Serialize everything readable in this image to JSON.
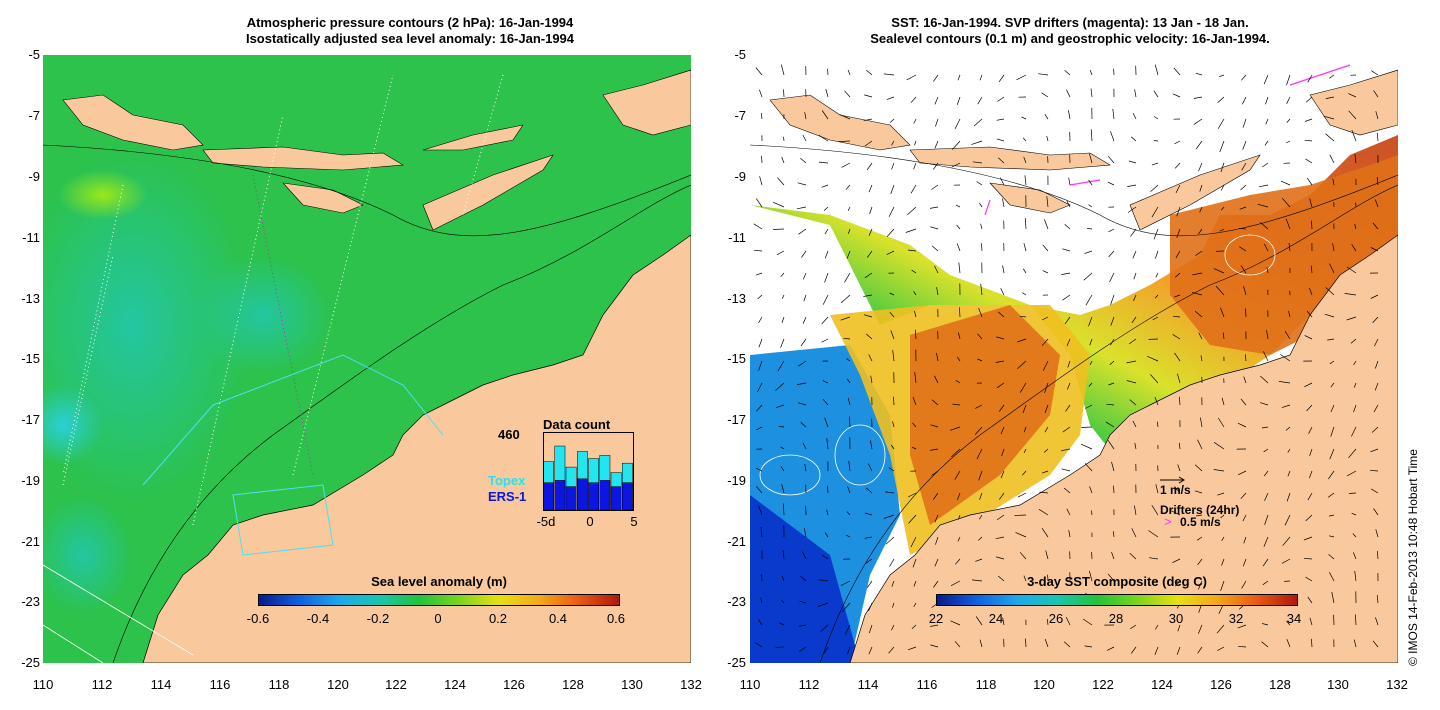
{
  "left_panel": {
    "title_line1": "Atmospheric pressure contours (2 hPa): 16-Jan-1994",
    "title_line2": "Isostatically adjusted sea level anomaly: 16-Jan-1994",
    "y_ticks": [
      "-5",
      "-7",
      "-9",
      "-11",
      "-13",
      "-15",
      "-17",
      "-19",
      "-21",
      "-23",
      "-25"
    ],
    "x_ticks": [
      "110",
      "112",
      "114",
      "116",
      "118",
      "120",
      "122",
      "124",
      "126",
      "128",
      "130",
      "132"
    ],
    "inset": {
      "title": "Data count",
      "max_label": "460",
      "topex_label": "Topex",
      "ers_label": "ERS-1",
      "x_ticks": [
        "-5d",
        "0",
        "5"
      ],
      "topex_color": "#22e5f0",
      "ers_color": "#0b16e0",
      "counts_total": [
        0.62,
        0.82,
        0.55,
        0.75,
        0.66,
        0.7,
        0.48,
        0.6
      ],
      "counts_ers": [
        0.35,
        0.38,
        0.3,
        0.4,
        0.35,
        0.38,
        0.3,
        0.35
      ]
    },
    "colorbar": {
      "label": "Sea level anomaly (m)",
      "ticks": [
        "-0.6",
        "-0.4",
        "-0.2",
        "0",
        "0.2",
        "0.4",
        "0.6"
      ]
    }
  },
  "right_panel": {
    "title_line1": "SST: 16-Jan-1994. SVP drifters (magenta): 13 Jan - 18 Jan.",
    "title_line2": "Sealevel contours (0.1 m) and geostrophic velocity: 16-Jan-1994.",
    "y_ticks": [
      "-5",
      "-7",
      "-9",
      "-11",
      "-13",
      "-15",
      "-17",
      "-19",
      "-21",
      "-23",
      "-25"
    ],
    "x_ticks": [
      "110",
      "112",
      "114",
      "116",
      "118",
      "120",
      "122",
      "124",
      "126",
      "128",
      "130",
      "132"
    ],
    "legend": {
      "velocity": "1 m/s",
      "drifters": "Drifters (24hr)",
      "drifter_speed": "0.5 m/s",
      "drifter_marker": ">"
    },
    "colorbar": {
      "label": "3-day SST composite (deg C)",
      "ticks": [
        "22",
        "24",
        "26",
        "28",
        "30",
        "32",
        "34"
      ]
    }
  },
  "credit": "© IMOS 14-Feb-2013 10:48 Hobart Time",
  "colors": {
    "land": "#f9c89c",
    "sea_green": "#22c33a",
    "drifter": "#ff33ff"
  }
}
